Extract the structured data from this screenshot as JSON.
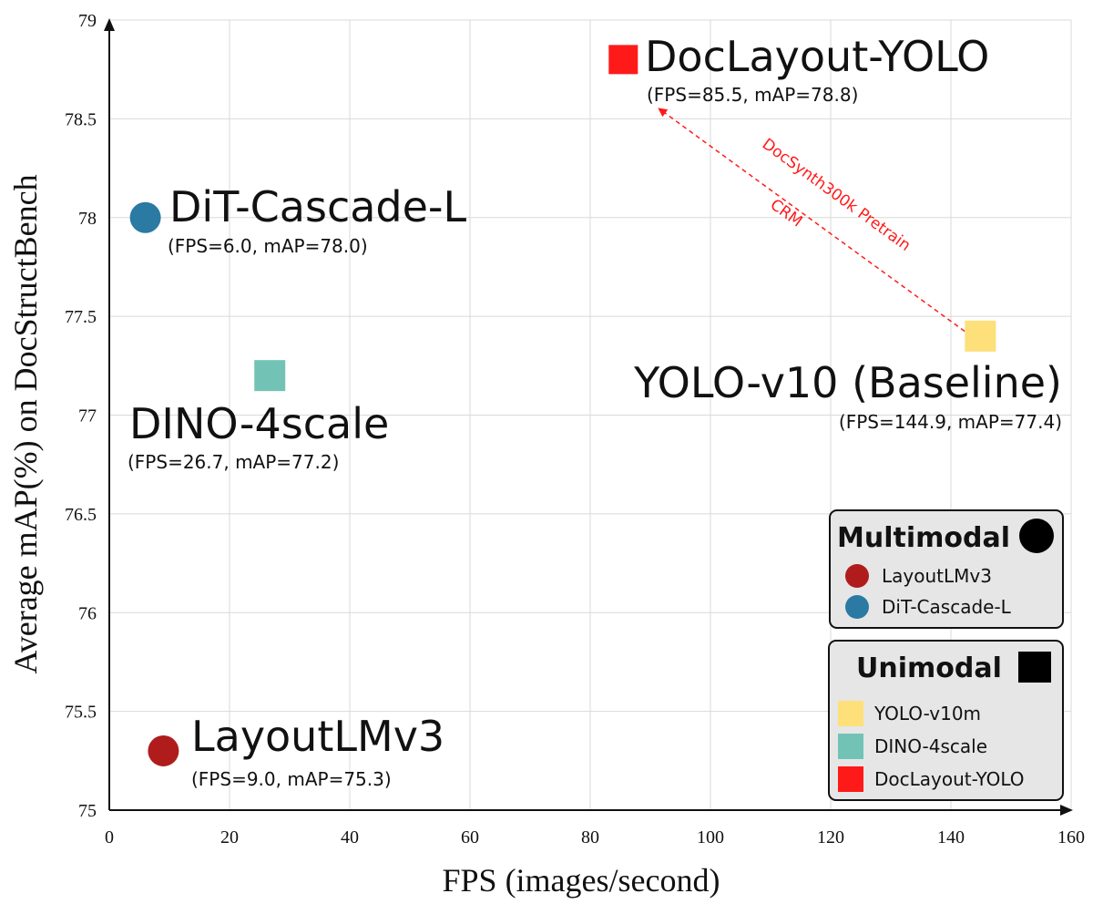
{
  "chart_data": {
    "type": "scatter",
    "title": "",
    "xlabel": "FPS (images/second)",
    "ylabel": "Average mAP(%) on DocStructBench",
    "xlim": [
      0,
      160
    ],
    "ylim": [
      75,
      79
    ],
    "x_ticks": [
      0,
      20,
      40,
      60,
      80,
      100,
      120,
      140,
      160
    ],
    "y_ticks": [
      75,
      75.5,
      76,
      76.5,
      77,
      77.5,
      78,
      78.5,
      79
    ],
    "y_tick_labels": [
      "75",
      "75.5",
      "76",
      "76.5",
      "77",
      "77.5",
      "78",
      "78.5",
      "79"
    ],
    "grid": true,
    "points": [
      {
        "name": "DiT-Cascade-L",
        "x": 6.0,
        "y": 78.0,
        "shape": "circle",
        "color": "#2a7aa3",
        "detail": "(FPS=6.0, mAP=78.0)",
        "label_color": "#111111"
      },
      {
        "name": "LayoutLMv3",
        "x": 9.0,
        "y": 75.3,
        "shape": "circle",
        "color": "#b01c1c",
        "detail": "(FPS=9.0, mAP=75.3)",
        "label_color": "#111111"
      },
      {
        "name": "DINO-4scale",
        "x": 26.7,
        "y": 77.2,
        "shape": "square",
        "color": "#72c3b5",
        "detail": "(FPS=26.7, mAP=77.2)",
        "label_color": "#111111"
      },
      {
        "name": "YOLO-v10 (Baseline)",
        "x": 144.9,
        "y": 77.4,
        "shape": "square",
        "color": "#fde07a",
        "detail": "(FPS=144.9, mAP=77.4)",
        "label_color": "#111111"
      },
      {
        "name": "DocLayout-YOLO",
        "x": 85.5,
        "y": 78.8,
        "shape": "square",
        "color": "#ff1a1a",
        "detail": "(FPS=85.5, mAP=78.8)",
        "label_color": "#ff1a1a"
      }
    ],
    "annotation": {
      "from": {
        "x": 144.9,
        "y": 77.4
      },
      "to": {
        "x": 91.5,
        "y": 78.55
      },
      "lines": [
        "DocSynth300k Pretrain",
        "CRM"
      ],
      "color": "#ff1a1a"
    },
    "legend": {
      "placement": "bottom-right",
      "groups": [
        {
          "title": "Multimodal",
          "symbol": "circle",
          "items": [
            {
              "label": "LayoutLMv3",
              "shape": "circle",
              "color": "#b01c1c"
            },
            {
              "label": "DiT-Cascade-L",
              "shape": "circle",
              "color": "#2a7aa3"
            }
          ]
        },
        {
          "title": "Unimodal",
          "symbol": "square",
          "items": [
            {
              "label": "YOLO-v10m",
              "shape": "square",
              "color": "#fde07a"
            },
            {
              "label": "DINO-4scale",
              "shape": "square",
              "color": "#72c3b5"
            },
            {
              "label": "DocLayout-YOLO",
              "shape": "square",
              "color": "#ff1a1a"
            }
          ]
        }
      ]
    }
  }
}
